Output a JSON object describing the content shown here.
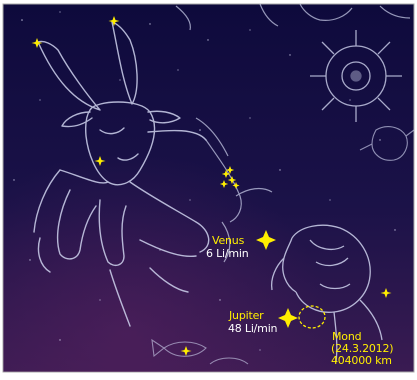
{
  "colors": {
    "sky_top": "#100b40",
    "sky_bottom": "#3a1a50",
    "line": "#cfd3ee",
    "star": "#ffee00",
    "label_white": "#ffffff"
  },
  "objects": {
    "venus": {
      "name": "Venus",
      "distance": "6 Li/min"
    },
    "jupiter": {
      "name": "Jupiter",
      "distance": "48 Li/min"
    },
    "moon": {
      "name": "Mond",
      "date": "(24.3.2012)",
      "distance": "404000 km"
    }
  },
  "icons": {
    "star_marker": "four-point-star-icon",
    "moon_marker": "dashed-circle-icon",
    "cluster": "pleiades-cluster-icon"
  }
}
